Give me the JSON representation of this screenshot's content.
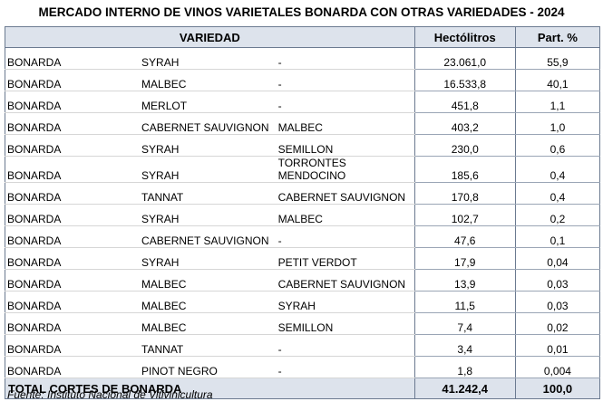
{
  "title": "MERCADO INTERNO DE VINOS VARIETALES BONARDA CON OTRAS VARIEDADES - 2024",
  "headers": {
    "variedad": "VARIEDAD",
    "hectolitros": "Hectólitros",
    "part": "Part. %"
  },
  "rows": [
    [
      "BONARDA",
      "SYRAH",
      "-",
      "23.061,0",
      "55,9"
    ],
    [
      "BONARDA",
      "MALBEC",
      "-",
      "16.533,8",
      "40,1"
    ],
    [
      "BONARDA",
      "MERLOT",
      "-",
      "451,8",
      "1,1"
    ],
    [
      "BONARDA",
      "CABERNET SAUVIGNON",
      "MALBEC",
      "403,2",
      "1,0"
    ],
    [
      "BONARDA",
      "SYRAH",
      "SEMILLON",
      "230,0",
      "0,6"
    ],
    [
      "BONARDA",
      "SYRAH",
      "TORRONTES MENDOCINO",
      "185,6",
      "0,4"
    ],
    [
      "BONARDA",
      "TANNAT",
      "CABERNET SAUVIGNON",
      "170,8",
      "0,4"
    ],
    [
      "BONARDA",
      "SYRAH",
      "MALBEC",
      "102,7",
      "0,2"
    ],
    [
      "BONARDA",
      "CABERNET SAUVIGNON",
      "-",
      "47,6",
      "0,1"
    ],
    [
      "BONARDA",
      "SYRAH",
      "PETIT VERDOT",
      "17,9",
      "0,04"
    ],
    [
      "BONARDA",
      "MALBEC",
      "CABERNET SAUVIGNON",
      "13,9",
      "0,03"
    ],
    [
      "BONARDA",
      "MALBEC",
      "SYRAH",
      "11,5",
      "0,03"
    ],
    [
      "BONARDA",
      "MALBEC",
      "SEMILLON",
      "7,4",
      "0,02"
    ],
    [
      "BONARDA",
      "TANNAT",
      "-",
      "3,4",
      "0,01"
    ],
    [
      "BONARDA",
      "PINOT NEGRO",
      "-",
      "1,8",
      "0,004"
    ]
  ],
  "total": {
    "label": "TOTAL CORTES DE BONARDA",
    "hectolitros": "41.242,4",
    "part": "100,0"
  },
  "footer": "Fuente: Instituto Nacional de Vitivinicultura",
  "colors": {
    "header_bg": "#dde3ec",
    "border": "#6b7a90"
  }
}
